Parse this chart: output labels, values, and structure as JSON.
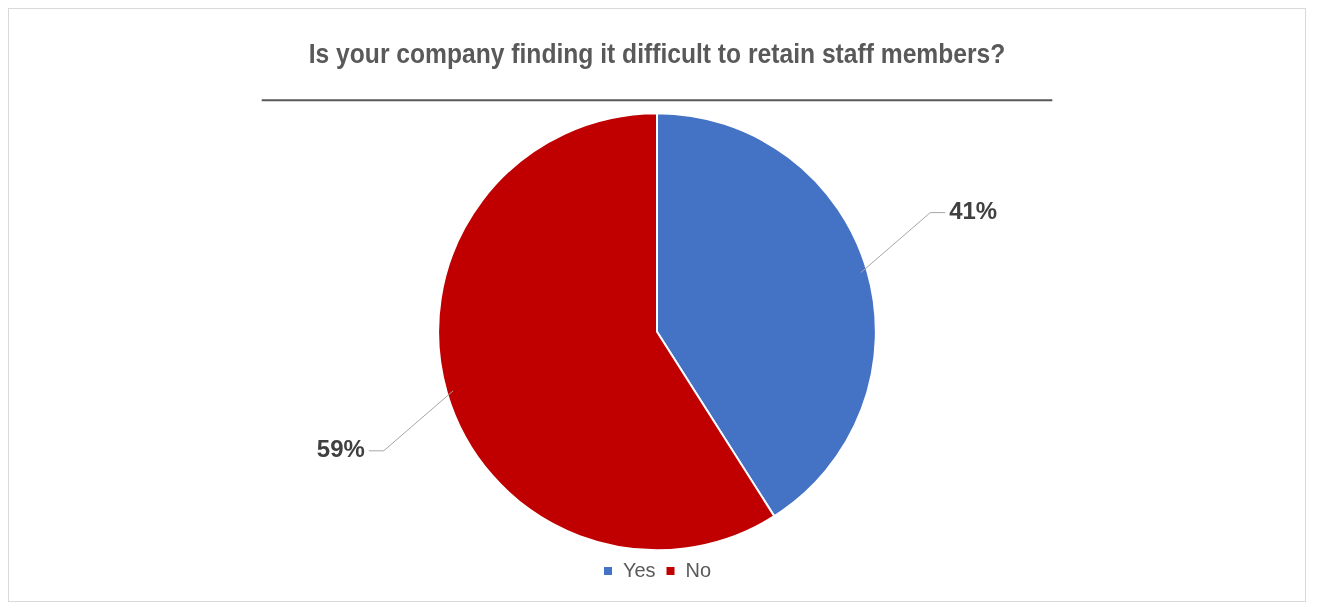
{
  "chart_data": {
    "type": "pie",
    "title": "Is your company finding it difficult to retain staff members?",
    "categories": [
      "Yes",
      "No"
    ],
    "values": [
      41,
      59
    ],
    "colors": [
      "#4472c4",
      "#c00000"
    ],
    "value_labels": [
      "41%",
      "59%"
    ],
    "legend": "bottom"
  }
}
